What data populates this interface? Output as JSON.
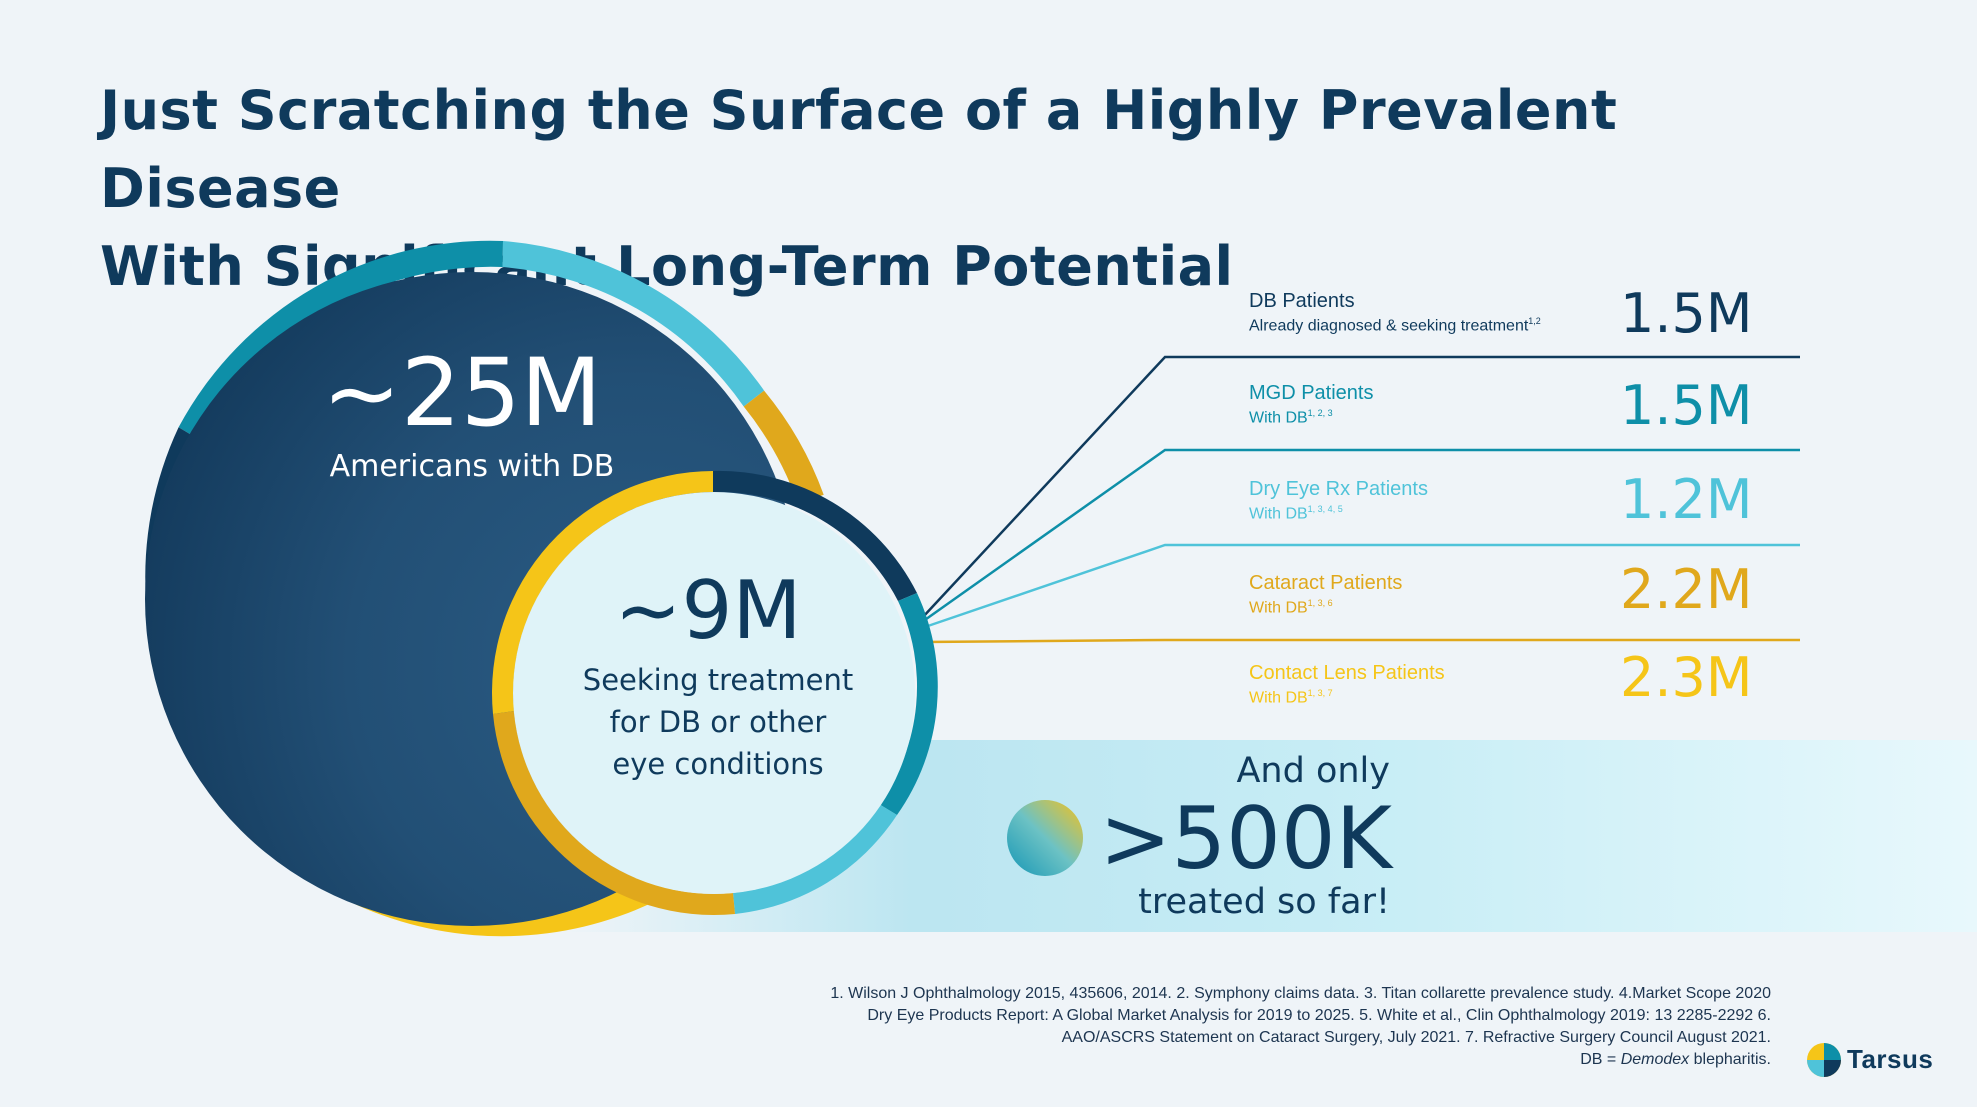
{
  "title": {
    "line1": "Just Scratching the Surface of a Highly Prevalent Disease",
    "line2": "With Significant Long-Term Potential"
  },
  "outer_circle": {
    "value": "~25M",
    "label": "Americans with DB"
  },
  "inner_circle": {
    "value": "~9M",
    "label_lines": [
      "Seeking treatment",
      "for DB or other",
      "eye conditions"
    ]
  },
  "segments": [
    {
      "title": "DB Patients",
      "subtitle": "Already diagnosed & seeking treatment",
      "refs": "1,2",
      "value": "1.5M",
      "color": "#0f3a5c"
    },
    {
      "title": "MGD Patients",
      "subtitle": "With DB",
      "refs": "1, 2, 3",
      "value": "1.5M",
      "color": "#0e8fa8"
    },
    {
      "title": "Dry Eye Rx Patients",
      "subtitle": "With DB",
      "refs": "1, 3, 4, 5",
      "value": "1.2M",
      "color": "#4fc3d9"
    },
    {
      "title": "Cataract Patients",
      "subtitle": "With DB",
      "refs": "1, 3, 6",
      "value": "2.2M",
      "color": "#e0a81c"
    },
    {
      "title": "Contact Lens Patients",
      "subtitle": "With DB",
      "refs": "1, 3, 7",
      "value": "2.3M",
      "color": "#f5c518"
    }
  ],
  "treated": {
    "line1": "And only",
    "value": ">500K",
    "line2": "treated so far!"
  },
  "references": {
    "lines": [
      "1. Wilson J Ophthalmology 2015, 435606, 2014. 2. Symphony claims data. 3. Titan collarette prevalence study. 4.Market Scope 2020",
      "Dry Eye Products Report: A Global Market Analysis for 2019 to 2025. 5. White et al., Clin Ophthalmology 2019: 13 2285-2292 6.",
      "AAO/ASCRS Statement on Cataract Surgery, July 2021. 7. Refractive Surgery Council August 2021."
    ],
    "db_prefix": "DB = ",
    "db_italic": "Demodex",
    "db_suffix": " blepharitis."
  },
  "logo": {
    "text": "Tarsus",
    "icon": "tarsus-logo-icon"
  },
  "colors": {
    "navy": "#0f3a5c",
    "teal": "#0e8fa8",
    "light_teal": "#4fc3d9",
    "gold": "#e0a81c",
    "yellow": "#f5c518"
  }
}
